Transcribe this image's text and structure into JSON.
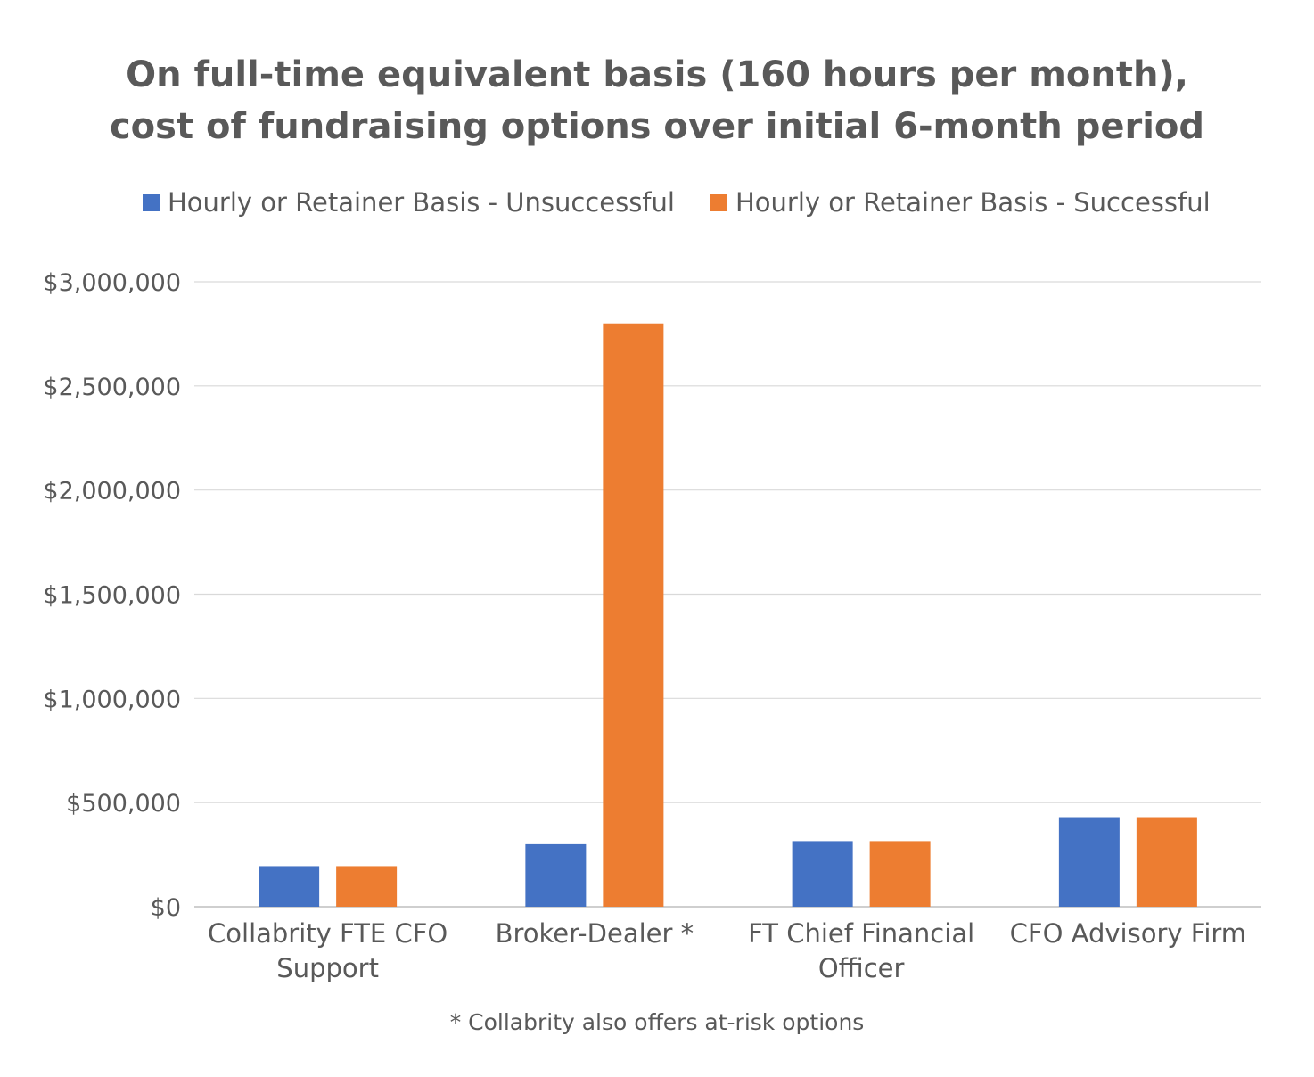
{
  "chart_data": {
    "type": "bar",
    "title": [
      "On full-time equivalent basis (160 hours per month),",
      "cost of fundraising options over initial 6-month period"
    ],
    "categories": [
      [
        "Collabrity FTE CFO",
        "Support"
      ],
      [
        "Broker-Dealer *"
      ],
      [
        "FT Chief Financial",
        "Officer"
      ],
      [
        "CFO Advisory Firm"
      ]
    ],
    "series": [
      {
        "name": "Hourly or Retainer Basis - Unsuccessful",
        "color": "#4472C4",
        "values": [
          195000,
          300000,
          315000,
          430000
        ]
      },
      {
        "name": "Hourly or Retainer Basis - Successful",
        "color": "#ED7D31",
        "values": [
          195000,
          2800000,
          315000,
          430000
        ]
      }
    ],
    "ylim": [
      0,
      3000000
    ],
    "yticks": [
      0,
      500000,
      1000000,
      1500000,
      2000000,
      2500000,
      3000000
    ],
    "ytick_labels": [
      "$0",
      "$500,000",
      "$1,000,000",
      "$1,500,000",
      "$2,000,000",
      "$2,500,000",
      "$3,000,000"
    ],
    "grid": true,
    "legend_position": "top",
    "footnote": "* Collabrity also offers at-risk options"
  }
}
